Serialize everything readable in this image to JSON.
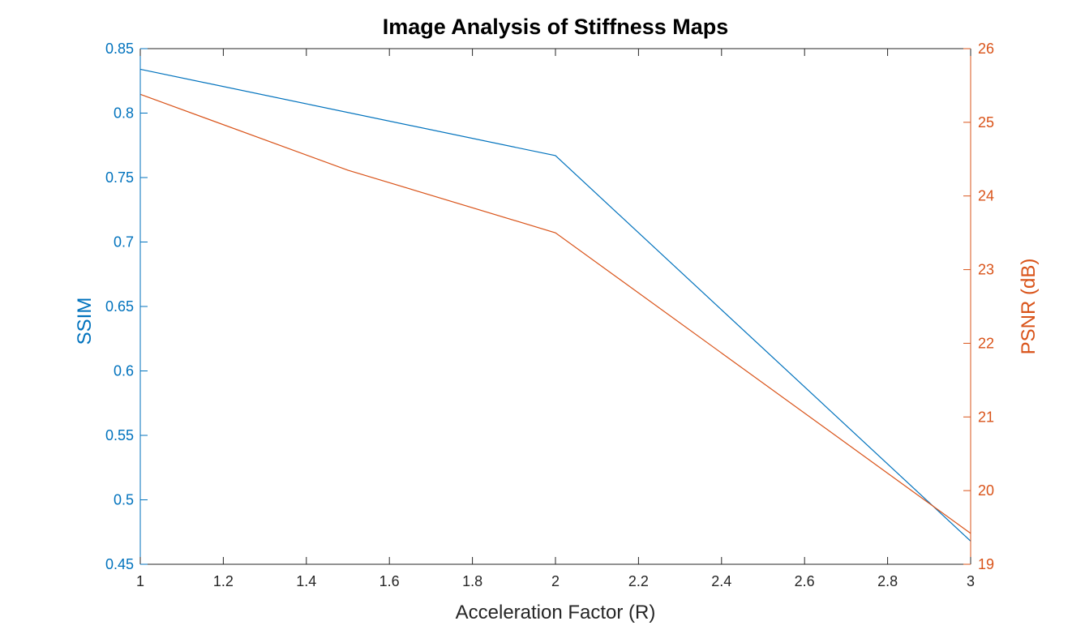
{
  "colors": {
    "left_axis": "#0072BD",
    "right_axis": "#D95319",
    "axis_dark": "#262626",
    "background": "#FFFFFF"
  },
  "chart_data": {
    "type": "line",
    "title": "Image Analysis of Stiffness Maps",
    "xlabel": "Acceleration Factor (R)",
    "ylabel_left": "SSIM",
    "ylabel_right": "PSNR (dB)",
    "xlim": [
      1,
      3
    ],
    "ylim_left": [
      0.45,
      0.85
    ],
    "ylim_right": [
      19,
      26
    ],
    "x_ticks": [
      "1",
      "1.2",
      "1.4",
      "1.6",
      "1.8",
      "2",
      "2.2",
      "2.4",
      "2.6",
      "2.8",
      "3"
    ],
    "y_ticks_left": [
      "0.45",
      "0.5",
      "0.55",
      "0.6",
      "0.65",
      "0.7",
      "0.75",
      "0.8",
      "0.85"
    ],
    "y_ticks_right": [
      "19",
      "20",
      "21",
      "22",
      "23",
      "24",
      "25",
      "26"
    ],
    "grid": false,
    "legend": "none",
    "series": [
      {
        "axis": "left",
        "color": "#0072BD",
        "x": [
          1,
          2,
          3
        ],
        "y": [
          0.834,
          0.767,
          0.468
        ]
      },
      {
        "axis": "right",
        "color": "#D95319",
        "x": [
          1,
          1.5,
          2,
          3
        ],
        "y": [
          25.38,
          24.35,
          23.5,
          19.42
        ]
      }
    ]
  }
}
